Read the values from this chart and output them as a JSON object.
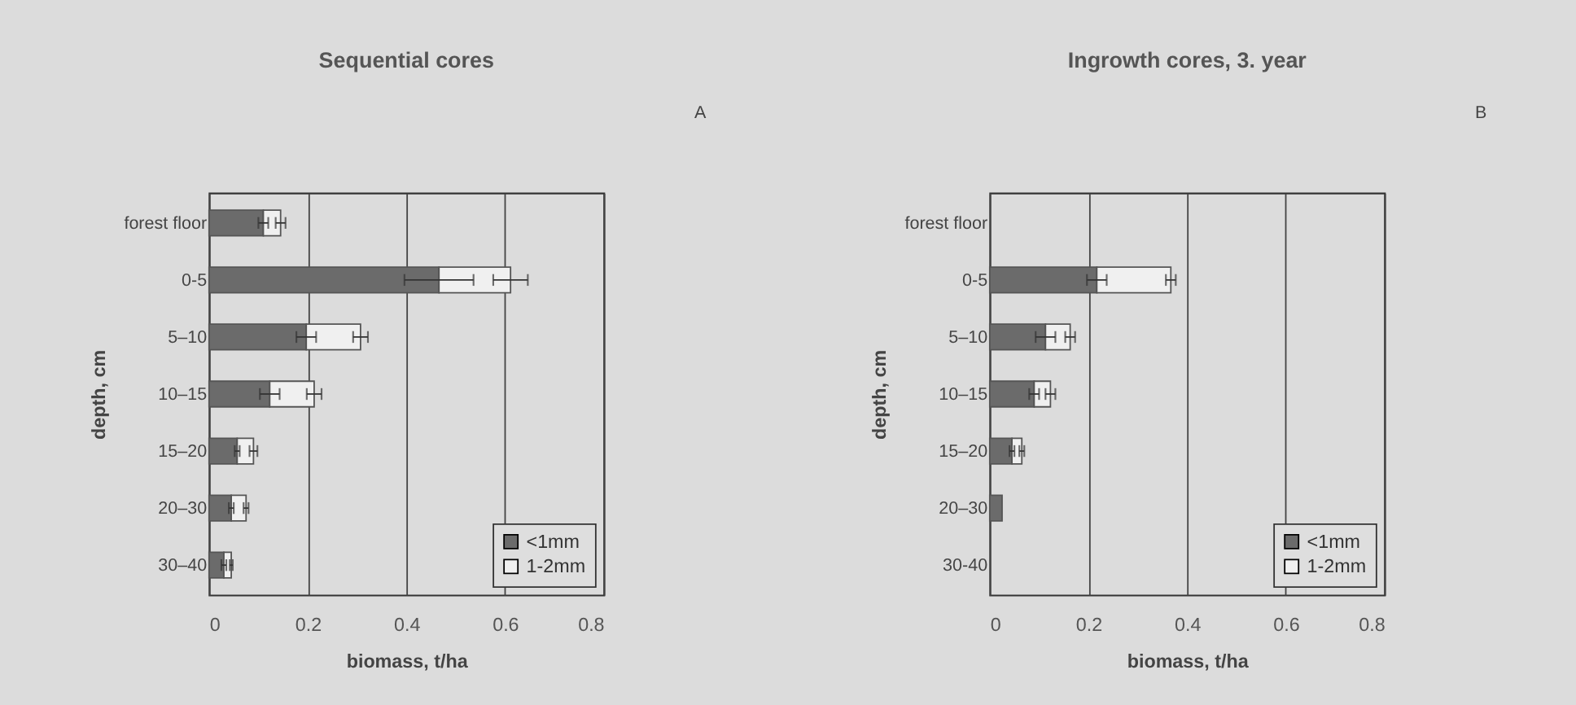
{
  "chart_data": [
    {
      "type": "bar",
      "orientation": "horizontal",
      "stacked": true,
      "title": "Sequential cores",
      "xlabel": "biomass, t/ha",
      "ylabel": "depth, cm",
      "annotations": [
        "A"
      ],
      "categories": [
        "forest floor",
        "0-5",
        "5–10",
        "10–15",
        "15–20",
        "20–30",
        "30–40"
      ],
      "series": [
        {
          "name": "<1mm",
          "color": "#6b6b6b",
          "values": [
            0.11,
            0.466,
            0.197,
            0.123,
            0.057,
            0.045,
            0.03
          ],
          "errors": [
            0.01,
            0.07,
            0.02,
            0.02,
            0.005,
            0.005,
            0.005
          ]
        },
        {
          "name": "1-2mm",
          "color": "#f0f0f0",
          "values": [
            0.035,
            0.145,
            0.11,
            0.09,
            0.033,
            0.03,
            0.015
          ],
          "errors": [
            0.01,
            0.035,
            0.015,
            0.015,
            0.008,
            0.005,
            0.003
          ]
        }
      ],
      "xlim": [
        0,
        0.8
      ],
      "xticks": [
        0,
        0.2,
        0.4,
        0.6,
        0.8
      ],
      "grid": "x",
      "legend": "bottom right"
    },
    {
      "type": "bar",
      "orientation": "horizontal",
      "stacked": true,
      "title": "Ingrowth cores, 3. year",
      "xlabel": "biomass, t/ha",
      "ylabel": "depth, cm",
      "annotations": [
        "B"
      ],
      "categories": [
        "forest floor",
        "0-5",
        "5–10",
        "10–15",
        "15–20",
        "20–30",
        "30-40"
      ],
      "series": [
        {
          "name": "<1mm",
          "color": "#6b6b6b",
          "values": [
            null,
            0.217,
            0.113,
            0.09,
            0.045,
            0.025,
            null
          ],
          "errors": [
            null,
            0.02,
            0.02,
            0.01,
            0.005,
            null,
            null
          ]
        },
        {
          "name": "1-2mm",
          "color": "#f0f0f0",
          "values": [
            null,
            0.15,
            0.05,
            0.033,
            0.02,
            null,
            null
          ],
          "errors": [
            null,
            0.01,
            0.01,
            0.01,
            0.005,
            null,
            null
          ]
        }
      ],
      "xlim": [
        0,
        0.8
      ],
      "xticks": [
        0,
        0.2,
        0.4,
        0.6,
        0.8
      ],
      "grid": "x",
      "legend": "bottom right"
    }
  ]
}
